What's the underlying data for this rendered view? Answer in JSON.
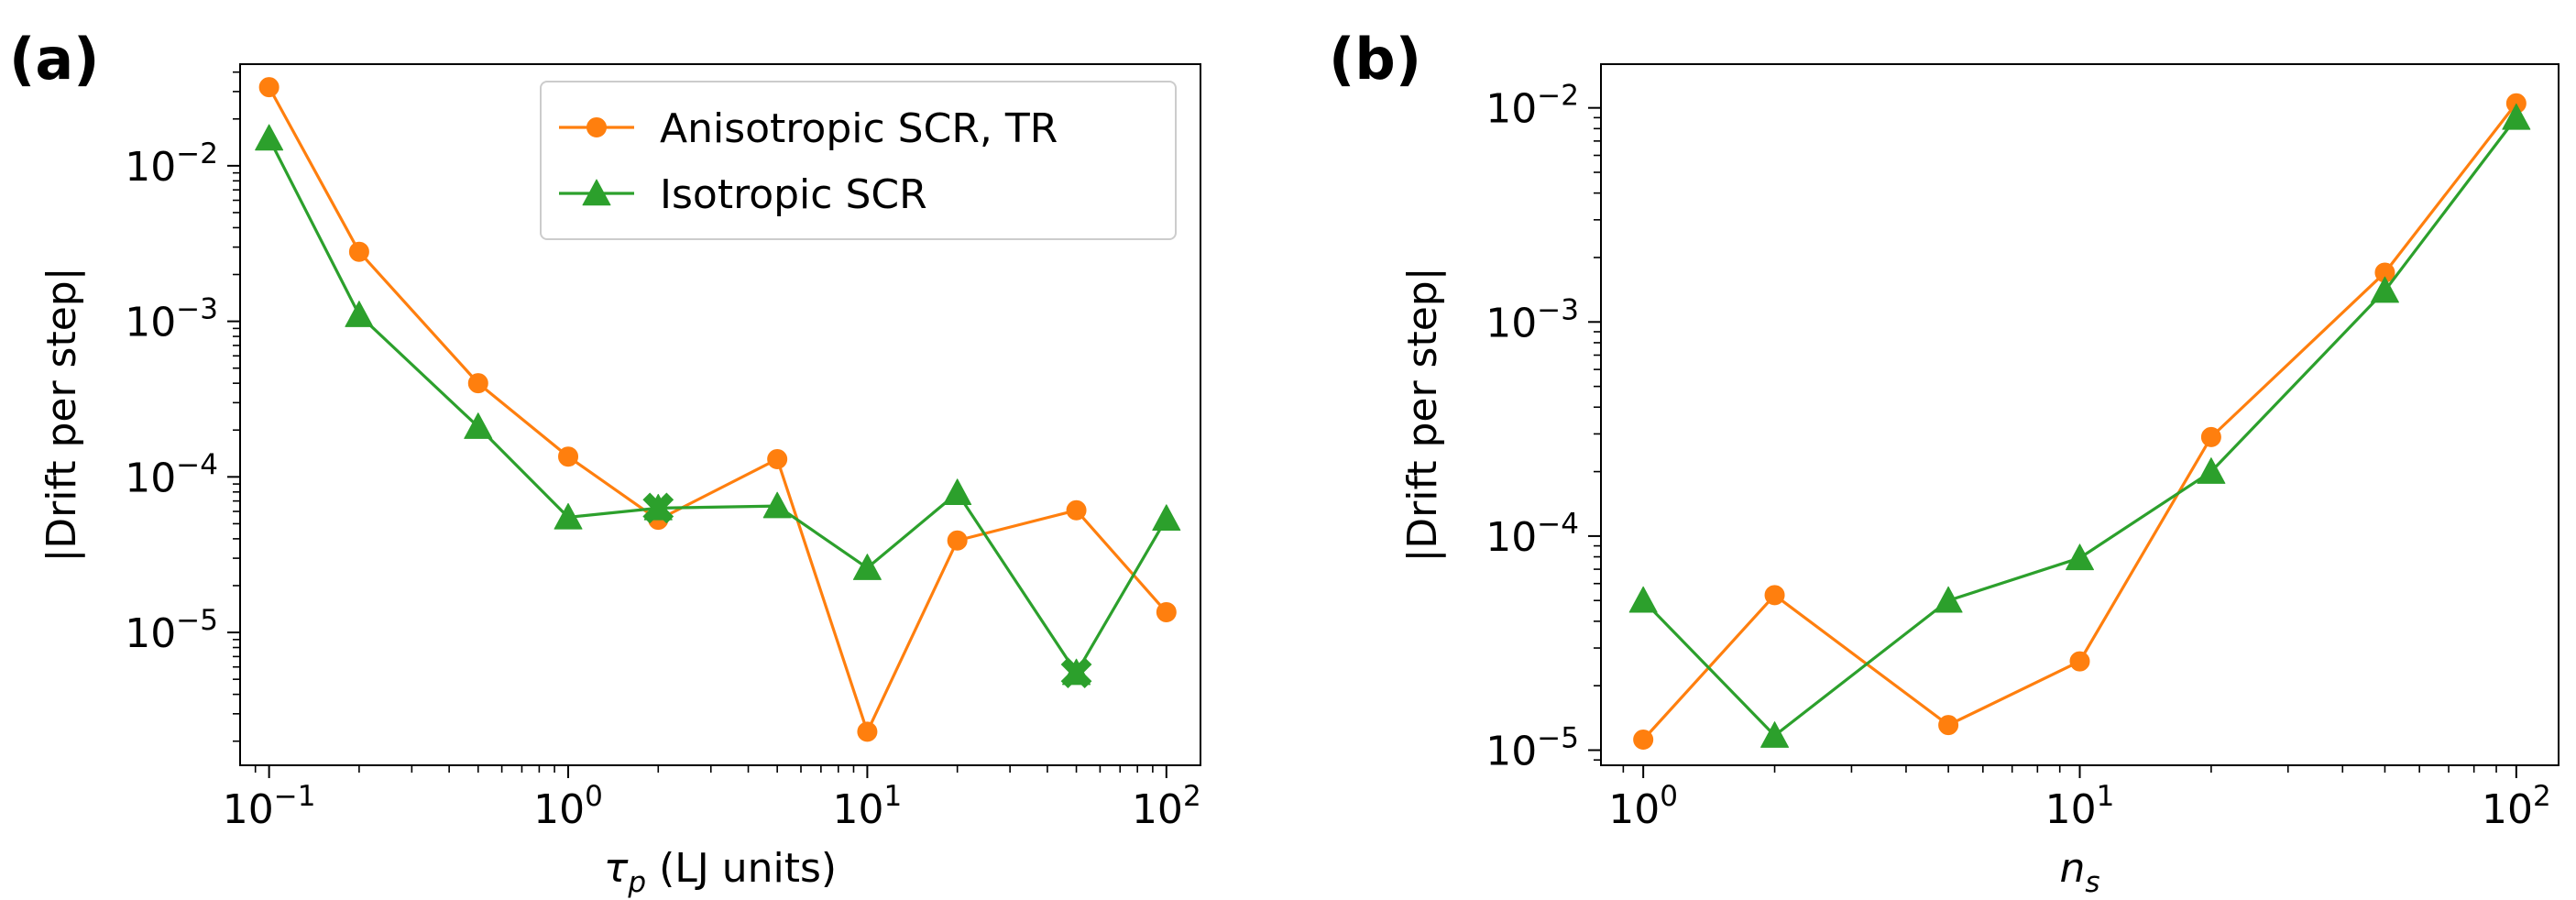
{
  "colors": {
    "orange": "#ff7f0e",
    "green": "#2ca02c",
    "frame": "#000000",
    "legend_edge": "#cccccc"
  },
  "chart_data": [
    {
      "type": "line",
      "panel_label": "(a)",
      "xscale": "log",
      "yscale": "log",
      "xlim": [
        0.08,
        130
      ],
      "ylim": [
        1.4e-06,
        0.045
      ],
      "xlabel": {
        "symbol": "τ",
        "subscript": "p",
        "suffix": " (LJ units)"
      },
      "ylabel": "|Drift per step|",
      "xticks": [
        {
          "base": "10",
          "exp": "−1",
          "value": 0.1
        },
        {
          "base": "10",
          "exp": "0",
          "value": 1
        },
        {
          "base": "10",
          "exp": "1",
          "value": 10
        },
        {
          "base": "10",
          "exp": "2",
          "value": 100
        }
      ],
      "yticks": [
        {
          "base": "10",
          "exp": "−5",
          "value": 1e-05
        },
        {
          "base": "10",
          "exp": "−4",
          "value": 0.0001
        },
        {
          "base": "10",
          "exp": "−3",
          "value": 0.001
        },
        {
          "base": "10",
          "exp": "−2",
          "value": 0.01
        }
      ],
      "legend": {
        "position": "upper-right"
      },
      "series": [
        {
          "name": "Anisotropic SCR, TR",
          "color": "#ff7f0e",
          "marker": "circle",
          "x": [
            0.1,
            0.2,
            0.5,
            1,
            2,
            5,
            10,
            20,
            50,
            100
          ],
          "y": [
            0.032,
            0.0028,
            0.0004,
            0.000135,
            5.3e-05,
            0.00013,
            2.3e-06,
            3.9e-05,
            6.1e-05,
            1.35e-05
          ]
        },
        {
          "name": "Isotropic SCR",
          "color": "#2ca02c",
          "marker": "triangle",
          "x": [
            0.1,
            0.2,
            0.5,
            1,
            2,
            5,
            10,
            20,
            50,
            100
          ],
          "y": [
            0.015,
            0.0011,
            0.00021,
            5.5e-05,
            6.3e-05,
            6.5e-05,
            2.6e-05,
            7.9e-05,
            5.5e-06,
            5.4e-05
          ],
          "x_markers": [
            {
              "x": 2,
              "y": 6.3e-05
            },
            {
              "x": 50,
              "y": 5.5e-06
            }
          ]
        }
      ]
    },
    {
      "type": "line",
      "panel_label": "(b)",
      "xscale": "log",
      "yscale": "log",
      "xlim": [
        0.8,
        125
      ],
      "ylim": [
        8.5e-06,
        0.016
      ],
      "xlabel": {
        "symbol": "n",
        "subscript": "s",
        "suffix": ""
      },
      "ylabel": "|Drift per step|",
      "xticks": [
        {
          "base": "10",
          "exp": "0",
          "value": 1
        },
        {
          "base": "10",
          "exp": "1",
          "value": 10
        },
        {
          "base": "10",
          "exp": "2",
          "value": 100
        }
      ],
      "yticks": [
        {
          "base": "10",
          "exp": "−5",
          "value": 1e-05
        },
        {
          "base": "10",
          "exp": "−4",
          "value": 0.0001
        },
        {
          "base": "10",
          "exp": "−3",
          "value": 0.001
        },
        {
          "base": "10",
          "exp": "−2",
          "value": 0.01
        }
      ],
      "series": [
        {
          "name": "Anisotropic SCR, TR",
          "color": "#ff7f0e",
          "marker": "circle",
          "x": [
            1,
            2,
            5,
            10,
            20,
            50,
            100
          ],
          "y": [
            1.12e-05,
            5.3e-05,
            1.31e-05,
            2.6e-05,
            0.00029,
            0.0017,
            0.0105
          ]
        },
        {
          "name": "Isotropic SCR",
          "color": "#2ca02c",
          "marker": "triangle",
          "x": [
            1,
            2,
            5,
            10,
            20,
            50,
            100
          ],
          "y": [
            5e-05,
            1.17e-05,
            5e-05,
            7.9e-05,
            0.0002,
            0.0014,
            0.009
          ]
        }
      ]
    }
  ]
}
